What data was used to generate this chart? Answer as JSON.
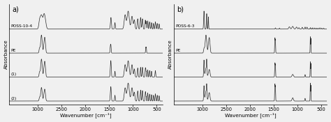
{
  "fig_width": 4.74,
  "fig_height": 1.75,
  "dpi": 100,
  "background_color": "#f5f5f5",
  "panel_a": {
    "label": "a)",
    "title": "POSS-10-4",
    "trace_labels": [
      "POSS-10-4",
      "PE",
      "(1)",
      "(2)"
    ],
    "xlabel": "Wavenumber [cm⁻¹]",
    "ylabel": "Absorbance",
    "xticks": [
      3000,
      2500,
      2000,
      1500,
      1000,
      500
    ]
  },
  "panel_b": {
    "label": "b)",
    "title": "POSS-6-3",
    "trace_labels": [
      "POSS-6-3",
      "PE",
      "",
      ""
    ],
    "xlabel": "Wavenumber [cm⁻¹]",
    "ylabel": "Absorbance",
    "xticks": [
      3000,
      2500,
      2000,
      1500,
      1000,
      500
    ]
  },
  "line_color": "#2a2a2a",
  "line_width": 0.5,
  "offsets": [
    3.0,
    2.0,
    1.0,
    0.0
  ],
  "trace_scale": 0.75
}
